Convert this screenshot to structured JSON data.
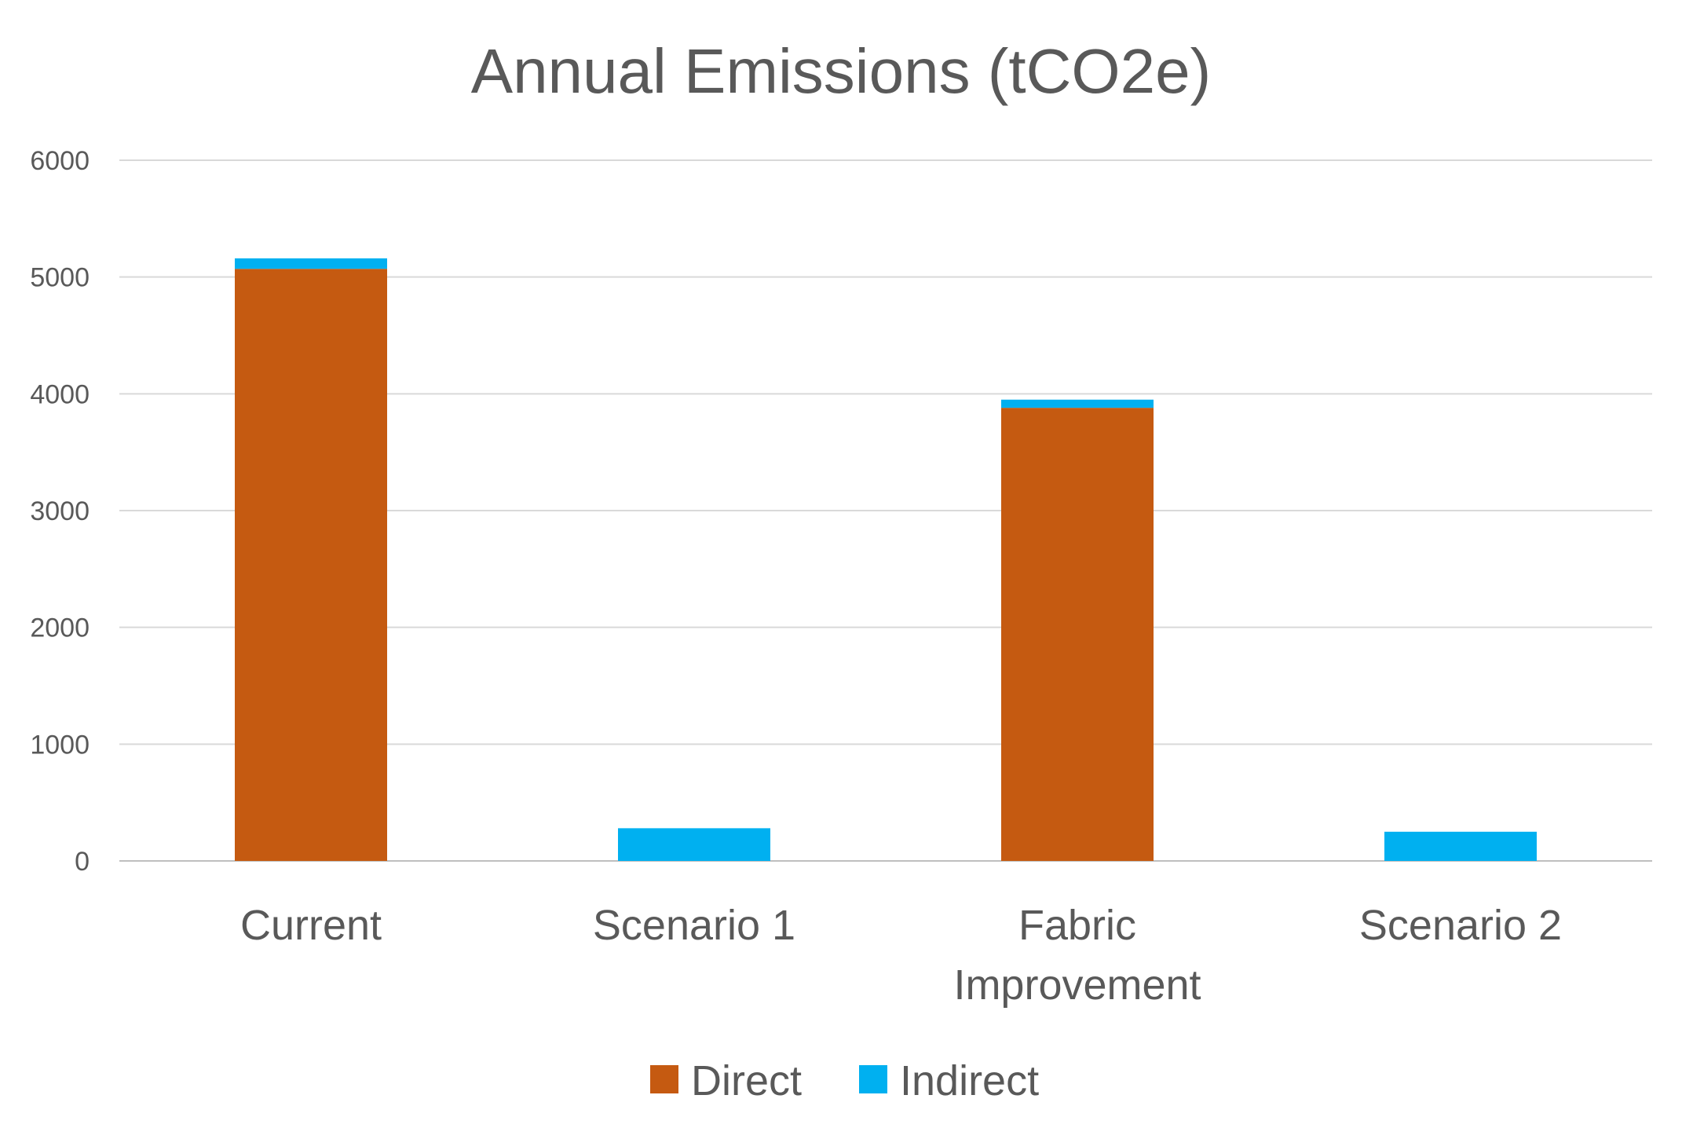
{
  "chart_data": {
    "type": "bar",
    "stacked": true,
    "title": "Annual Emissions (tCO2e)",
    "categories": [
      "Current",
      "Scenario 1",
      "Fabric Improvement",
      "Scenario 2"
    ],
    "category_lines": [
      [
        "Current"
      ],
      [
        "Scenario 1"
      ],
      [
        "Fabric",
        "Improvement"
      ],
      [
        "Scenario 2"
      ]
    ],
    "series": [
      {
        "name": "Direct",
        "color": "#C55A11",
        "values": [
          5070,
          0,
          3880,
          0
        ]
      },
      {
        "name": "Indirect",
        "color": "#00B0F0",
        "values": [
          90,
          280,
          70,
          250
        ]
      }
    ],
    "ylim": [
      0,
      6000
    ],
    "yticks": [
      0,
      1000,
      2000,
      3000,
      4000,
      5000,
      6000
    ],
    "grid": true,
    "legend_position": "bottom"
  }
}
